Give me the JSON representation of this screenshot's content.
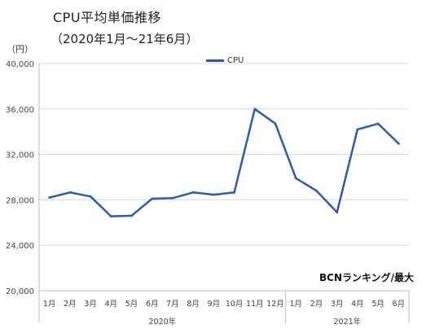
{
  "chart_data": {
    "type": "line",
    "title": "CPU平均単価推移",
    "subtitle": "（2020年1月～21年6月）",
    "ylabel": "（円）",
    "ylim": [
      20000,
      40000
    ],
    "yticks": [
      "20,000",
      "24,000",
      "28,000",
      "32,000",
      "36,000",
      "40,000"
    ],
    "ytick_values": [
      20000,
      24000,
      28000,
      32000,
      36000,
      40000
    ],
    "categories": [
      "1月",
      "2月",
      "3月",
      "4月",
      "5月",
      "6月",
      "7月",
      "8月",
      "9月",
      "10月",
      "11月",
      "12月",
      "1月",
      "2月",
      "3月",
      "4月",
      "5月",
      "6月"
    ],
    "year_groups": [
      {
        "label": "2020年",
        "count": 12
      },
      {
        "label": "2021年",
        "count": 6
      }
    ],
    "series": [
      {
        "name": "CPU",
        "color": "#2a5caa",
        "values": [
          28200,
          28650,
          28300,
          26550,
          26600,
          28100,
          28150,
          28650,
          28450,
          28650,
          36000,
          34700,
          29900,
          28800,
          26900,
          34200,
          34700,
          32950
        ]
      }
    ],
    "legend": "top-center",
    "grid": true,
    "source_note": "BCNランキング/最大"
  }
}
